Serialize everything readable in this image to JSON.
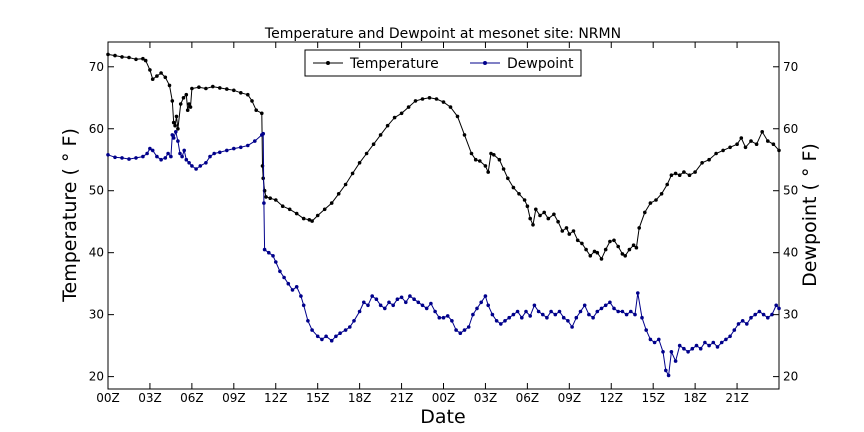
{
  "chart_data": {
    "type": "line",
    "title": "Temperature and Dewpoint at mesonet site: NRMN",
    "xlabel": "Date",
    "ylabel": "Temperature ( ° F)",
    "ylabel_right": "Dewpoint ( ° F)",
    "ylim": [
      18,
      74
    ],
    "ylim_right": [
      18,
      74
    ],
    "yticks": [
      20,
      30,
      40,
      50,
      60,
      70
    ],
    "xlim": [
      0,
      48
    ],
    "xticks": [
      {
        "hour": 0,
        "label": "00Z"
      },
      {
        "hour": 3,
        "label": "03Z"
      },
      {
        "hour": 6,
        "label": "06Z"
      },
      {
        "hour": 9,
        "label": "09Z"
      },
      {
        "hour": 12,
        "label": "12Z"
      },
      {
        "hour": 15,
        "label": "15Z"
      },
      {
        "hour": 18,
        "label": "18Z"
      },
      {
        "hour": 21,
        "label": "21Z"
      },
      {
        "hour": 24,
        "label": "00Z"
      },
      {
        "hour": 27,
        "label": "03Z"
      },
      {
        "hour": 30,
        "label": "06Z"
      },
      {
        "hour": 33,
        "label": "09Z"
      },
      {
        "hour": 36,
        "label": "12Z"
      },
      {
        "hour": 39,
        "label": "15Z"
      },
      {
        "hour": 42,
        "label": "18Z"
      },
      {
        "hour": 45,
        "label": "21Z"
      }
    ],
    "grid": false,
    "legend_position": "top-center",
    "series": [
      {
        "name": "Temperature",
        "axis": "left",
        "color": "#000000",
        "points": [
          [
            0.0,
            72.0
          ],
          [
            0.5,
            71.8
          ],
          [
            1.0,
            71.6
          ],
          [
            1.5,
            71.5
          ],
          [
            2.0,
            71.2
          ],
          [
            2.5,
            71.3
          ],
          [
            2.7,
            71.0
          ],
          [
            3.0,
            69.5
          ],
          [
            3.2,
            68.0
          ],
          [
            3.5,
            68.5
          ],
          [
            3.8,
            69.0
          ],
          [
            4.1,
            68.3
          ],
          [
            4.4,
            67.0
          ],
          [
            4.6,
            64.5
          ],
          [
            4.7,
            61.0
          ],
          [
            4.8,
            60.5
          ],
          [
            4.9,
            62.0
          ],
          [
            5.0,
            60.0
          ],
          [
            5.2,
            64.0
          ],
          [
            5.4,
            65.0
          ],
          [
            5.6,
            65.5
          ],
          [
            5.7,
            63.0
          ],
          [
            5.8,
            64.0
          ],
          [
            5.9,
            63.5
          ],
          [
            6.0,
            66.5
          ],
          [
            6.5,
            66.7
          ],
          [
            7.0,
            66.5
          ],
          [
            7.5,
            66.8
          ],
          [
            8.0,
            66.6
          ],
          [
            8.5,
            66.4
          ],
          [
            9.0,
            66.2
          ],
          [
            9.5,
            65.8
          ],
          [
            10.0,
            65.5
          ],
          [
            10.3,
            64.5
          ],
          [
            10.6,
            63.0
          ],
          [
            11.0,
            62.5
          ],
          [
            11.05,
            54.0
          ],
          [
            11.1,
            52.0
          ],
          [
            11.2,
            50.0
          ],
          [
            11.3,
            49.0
          ],
          [
            11.6,
            48.8
          ],
          [
            12.0,
            48.5
          ],
          [
            12.5,
            47.5
          ],
          [
            13.0,
            47.0
          ],
          [
            13.5,
            46.3
          ],
          [
            14.0,
            45.5
          ],
          [
            14.4,
            45.3
          ],
          [
            14.6,
            45.1
          ],
          [
            15.0,
            46.0
          ],
          [
            15.5,
            47.0
          ],
          [
            16.0,
            48.0
          ],
          [
            16.5,
            49.5
          ],
          [
            17.0,
            51.0
          ],
          [
            17.5,
            52.8
          ],
          [
            18.0,
            54.5
          ],
          [
            18.5,
            56.0
          ],
          [
            19.0,
            57.5
          ],
          [
            19.5,
            59.0
          ],
          [
            20.0,
            60.5
          ],
          [
            20.5,
            61.8
          ],
          [
            21.0,
            62.5
          ],
          [
            21.5,
            63.5
          ],
          [
            22.0,
            64.5
          ],
          [
            22.5,
            64.8
          ],
          [
            23.0,
            65.0
          ],
          [
            23.5,
            64.8
          ],
          [
            24.0,
            64.3
          ],
          [
            24.5,
            63.5
          ],
          [
            25.0,
            62.0
          ],
          [
            25.5,
            59.0
          ],
          [
            26.0,
            56.0
          ],
          [
            26.3,
            55.0
          ],
          [
            26.6,
            54.8
          ],
          [
            27.0,
            54.0
          ],
          [
            27.2,
            53.0
          ],
          [
            27.4,
            56.0
          ],
          [
            27.6,
            55.8
          ],
          [
            28.0,
            55.0
          ],
          [
            28.3,
            53.5
          ],
          [
            28.6,
            52.0
          ],
          [
            29.0,
            50.5
          ],
          [
            29.4,
            49.5
          ],
          [
            29.8,
            48.5
          ],
          [
            30.0,
            47.5
          ],
          [
            30.2,
            45.5
          ],
          [
            30.4,
            44.5
          ],
          [
            30.6,
            47.0
          ],
          [
            30.9,
            46.0
          ],
          [
            31.2,
            46.5
          ],
          [
            31.5,
            45.5
          ],
          [
            31.9,
            46.2
          ],
          [
            32.2,
            45.0
          ],
          [
            32.5,
            43.5
          ],
          [
            32.8,
            44.0
          ],
          [
            33.0,
            43.0
          ],
          [
            33.3,
            43.5
          ],
          [
            33.6,
            42.0
          ],
          [
            33.9,
            41.5
          ],
          [
            34.2,
            40.5
          ],
          [
            34.5,
            39.5
          ],
          [
            34.8,
            40.2
          ],
          [
            35.0,
            40.0
          ],
          [
            35.3,
            39.0
          ],
          [
            35.6,
            40.5
          ],
          [
            35.9,
            41.8
          ],
          [
            36.2,
            42.0
          ],
          [
            36.5,
            41.0
          ],
          [
            36.8,
            39.8
          ],
          [
            37.0,
            39.5
          ],
          [
            37.3,
            40.5
          ],
          [
            37.6,
            41.2
          ],
          [
            37.8,
            40.8
          ],
          [
            38.0,
            44.0
          ],
          [
            38.4,
            46.5
          ],
          [
            38.8,
            48.0
          ],
          [
            39.2,
            48.5
          ],
          [
            39.6,
            49.5
          ],
          [
            40.0,
            51.0
          ],
          [
            40.3,
            52.5
          ],
          [
            40.6,
            52.8
          ],
          [
            40.9,
            52.5
          ],
          [
            41.2,
            53.0
          ],
          [
            41.6,
            52.5
          ],
          [
            42.0,
            53.0
          ],
          [
            42.5,
            54.5
          ],
          [
            43.0,
            55.0
          ],
          [
            43.5,
            56.0
          ],
          [
            44.0,
            56.5
          ],
          [
            44.5,
            57.0
          ],
          [
            45.0,
            57.5
          ],
          [
            45.3,
            58.5
          ],
          [
            45.6,
            57.0
          ],
          [
            46.0,
            58.0
          ],
          [
            46.4,
            57.5
          ],
          [
            46.8,
            59.5
          ],
          [
            47.2,
            58.0
          ],
          [
            47.6,
            57.5
          ],
          [
            48.0,
            56.5
          ]
        ]
      },
      {
        "name": "Dewpoint",
        "axis": "right",
        "color": "#00008b",
        "points": [
          [
            0.0,
            55.8
          ],
          [
            0.5,
            55.4
          ],
          [
            1.0,
            55.3
          ],
          [
            1.5,
            55.1
          ],
          [
            2.0,
            55.3
          ],
          [
            2.5,
            55.5
          ],
          [
            2.8,
            56.0
          ],
          [
            3.0,
            56.8
          ],
          [
            3.2,
            56.5
          ],
          [
            3.5,
            55.5
          ],
          [
            3.8,
            55.0
          ],
          [
            4.1,
            55.3
          ],
          [
            4.3,
            56.0
          ],
          [
            4.5,
            55.5
          ],
          [
            4.6,
            59.0
          ],
          [
            4.7,
            58.5
          ],
          [
            4.85,
            59.5
          ],
          [
            5.0,
            58.0
          ],
          [
            5.15,
            56.0
          ],
          [
            5.3,
            55.5
          ],
          [
            5.45,
            56.5
          ],
          [
            5.6,
            55.0
          ],
          [
            5.8,
            54.5
          ],
          [
            6.0,
            54.0
          ],
          [
            6.3,
            53.5
          ],
          [
            6.6,
            54.0
          ],
          [
            7.0,
            54.5
          ],
          [
            7.3,
            55.5
          ],
          [
            7.6,
            56.0
          ],
          [
            8.0,
            56.2
          ],
          [
            8.5,
            56.5
          ],
          [
            9.0,
            56.8
          ],
          [
            9.5,
            57.0
          ],
          [
            10.0,
            57.3
          ],
          [
            10.5,
            58.0
          ],
          [
            11.0,
            59.0
          ],
          [
            11.1,
            59.2
          ],
          [
            11.15,
            48.0
          ],
          [
            11.2,
            40.5
          ],
          [
            11.5,
            40.0
          ],
          [
            11.8,
            39.5
          ],
          [
            12.0,
            38.5
          ],
          [
            12.3,
            37.0
          ],
          [
            12.6,
            36.0
          ],
          [
            12.9,
            35.0
          ],
          [
            13.2,
            34.0
          ],
          [
            13.5,
            34.5
          ],
          [
            13.8,
            33.0
          ],
          [
            14.0,
            31.5
          ],
          [
            14.3,
            29.0
          ],
          [
            14.6,
            27.5
          ],
          [
            15.0,
            26.5
          ],
          [
            15.3,
            26.0
          ],
          [
            15.6,
            26.5
          ],
          [
            16.0,
            25.8
          ],
          [
            16.3,
            26.5
          ],
          [
            16.6,
            27.0
          ],
          [
            17.0,
            27.5
          ],
          [
            17.3,
            28.0
          ],
          [
            17.6,
            29.0
          ],
          [
            18.0,
            30.5
          ],
          [
            18.3,
            32.0
          ],
          [
            18.6,
            31.5
          ],
          [
            18.9,
            33.0
          ],
          [
            19.2,
            32.5
          ],
          [
            19.5,
            31.5
          ],
          [
            19.8,
            31.0
          ],
          [
            20.1,
            32.0
          ],
          [
            20.4,
            31.5
          ],
          [
            20.7,
            32.5
          ],
          [
            21.0,
            32.8
          ],
          [
            21.3,
            32.0
          ],
          [
            21.6,
            33.0
          ],
          [
            21.9,
            32.5
          ],
          [
            22.2,
            32.0
          ],
          [
            22.5,
            31.5
          ],
          [
            22.8,
            31.0
          ],
          [
            23.1,
            31.8
          ],
          [
            23.4,
            30.5
          ],
          [
            23.7,
            29.5
          ],
          [
            24.0,
            29.5
          ],
          [
            24.3,
            29.8
          ],
          [
            24.6,
            29.0
          ],
          [
            24.9,
            27.5
          ],
          [
            25.2,
            27.0
          ],
          [
            25.5,
            27.5
          ],
          [
            25.8,
            28.0
          ],
          [
            26.1,
            30.0
          ],
          [
            26.4,
            31.0
          ],
          [
            26.7,
            32.0
          ],
          [
            27.0,
            33.0
          ],
          [
            27.2,
            31.5
          ],
          [
            27.5,
            30.0
          ],
          [
            27.8,
            29.0
          ],
          [
            28.1,
            28.5
          ],
          [
            28.4,
            29.0
          ],
          [
            28.7,
            29.5
          ],
          [
            29.0,
            30.0
          ],
          [
            29.3,
            30.5
          ],
          [
            29.6,
            29.5
          ],
          [
            29.9,
            30.5
          ],
          [
            30.2,
            29.8
          ],
          [
            30.5,
            31.5
          ],
          [
            30.8,
            30.5
          ],
          [
            31.1,
            30.0
          ],
          [
            31.4,
            29.5
          ],
          [
            31.7,
            30.5
          ],
          [
            32.0,
            30.0
          ],
          [
            32.3,
            30.5
          ],
          [
            32.6,
            29.5
          ],
          [
            32.9,
            29.0
          ],
          [
            33.2,
            28.0
          ],
          [
            33.5,
            29.5
          ],
          [
            33.8,
            30.5
          ],
          [
            34.1,
            31.5
          ],
          [
            34.4,
            30.0
          ],
          [
            34.7,
            29.5
          ],
          [
            35.0,
            30.5
          ],
          [
            35.3,
            31.0
          ],
          [
            35.6,
            31.5
          ],
          [
            35.9,
            32.0
          ],
          [
            36.2,
            31.0
          ],
          [
            36.5,
            30.5
          ],
          [
            36.8,
            30.5
          ],
          [
            37.1,
            30.0
          ],
          [
            37.4,
            30.5
          ],
          [
            37.7,
            30.0
          ],
          [
            37.9,
            33.5
          ],
          [
            38.2,
            29.5
          ],
          [
            38.5,
            27.5
          ],
          [
            38.8,
            26.0
          ],
          [
            39.1,
            25.5
          ],
          [
            39.4,
            26.0
          ],
          [
            39.7,
            24.0
          ],
          [
            39.9,
            21.0
          ],
          [
            40.1,
            20.2
          ],
          [
            40.3,
            24.0
          ],
          [
            40.6,
            22.5
          ],
          [
            40.9,
            25.0
          ],
          [
            41.2,
            24.5
          ],
          [
            41.5,
            24.0
          ],
          [
            41.8,
            24.5
          ],
          [
            42.1,
            25.0
          ],
          [
            42.4,
            24.5
          ],
          [
            42.7,
            25.5
          ],
          [
            43.0,
            25.0
          ],
          [
            43.3,
            25.5
          ],
          [
            43.6,
            24.8
          ],
          [
            43.9,
            25.5
          ],
          [
            44.2,
            26.0
          ],
          [
            44.5,
            26.5
          ],
          [
            44.8,
            27.5
          ],
          [
            45.1,
            28.5
          ],
          [
            45.4,
            29.0
          ],
          [
            45.7,
            28.5
          ],
          [
            46.0,
            29.5
          ],
          [
            46.3,
            30.0
          ],
          [
            46.6,
            30.5
          ],
          [
            46.9,
            30.0
          ],
          [
            47.2,
            29.5
          ],
          [
            47.5,
            30.0
          ],
          [
            47.8,
            31.5
          ],
          [
            48.0,
            31.0
          ]
        ]
      }
    ]
  }
}
